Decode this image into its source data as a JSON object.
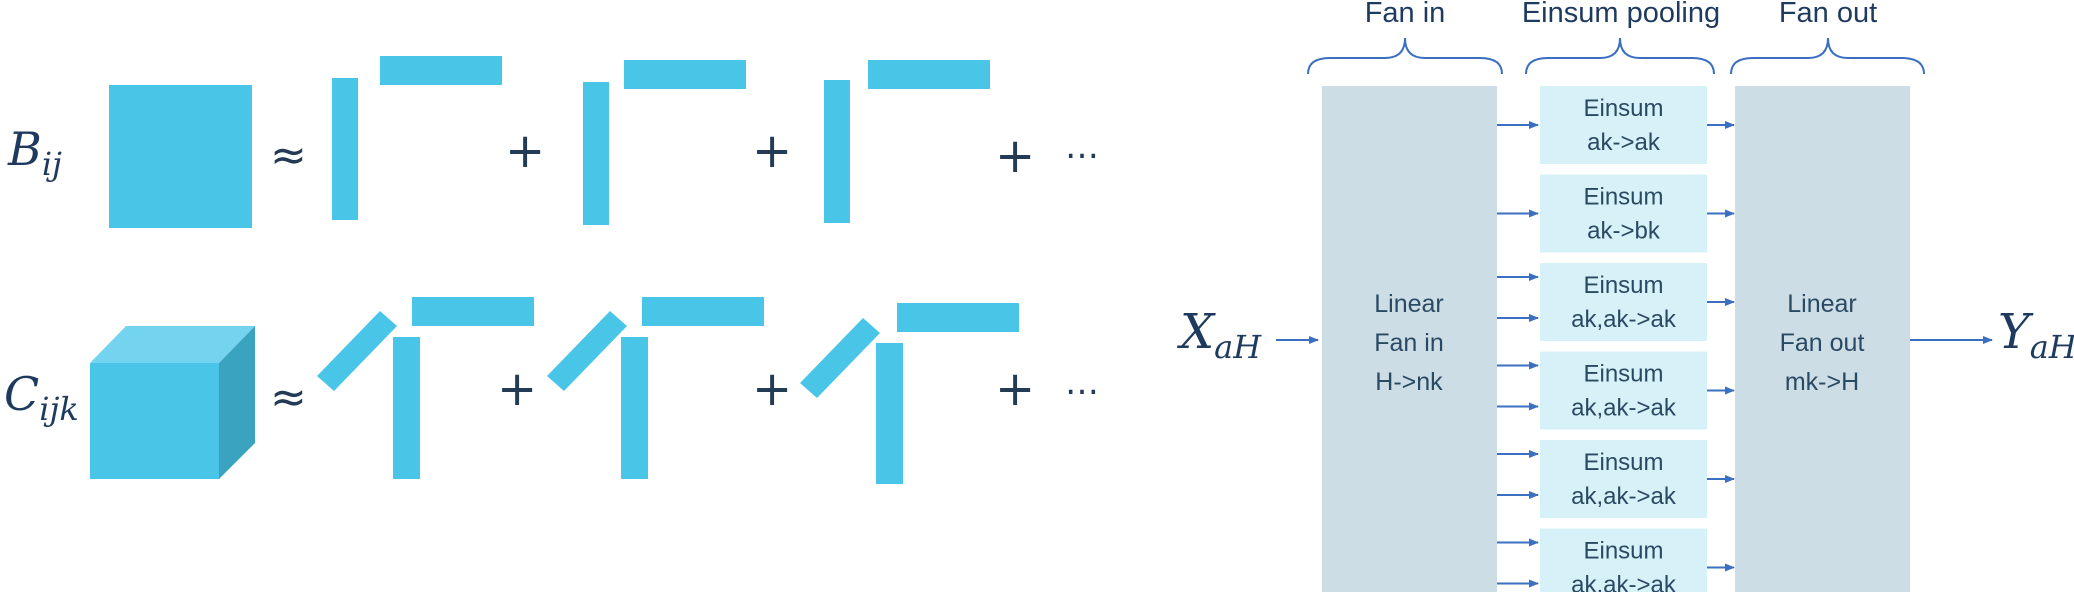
{
  "colors": {
    "tensor": "#49c5e8",
    "tensor_top": "#74d3ee",
    "tensor_side": "#3aa3c0",
    "panel": "#cddde6",
    "einsum_box": "#d7f1f8",
    "arrow": "#3b6fc0",
    "brace": "#3b6fc0",
    "text": "#1f3a5f"
  },
  "left": {
    "matrix_label_main": "B",
    "matrix_label_sub": "ij",
    "tensor_label_main": "C",
    "tensor_label_sub": "ijk",
    "approx": "≈",
    "plus": "+",
    "ellipsis": "…"
  },
  "right": {
    "input_main": "X",
    "input_sub": "aH",
    "output_main": "Y",
    "output_sub": "aH",
    "headers": {
      "fan_in": "Fan in",
      "einsum_pooling": "Einsum pooling",
      "fan_out": "Fan out"
    },
    "fan_in_panel": [
      "Linear",
      "Fan in",
      "H->nk"
    ],
    "fan_out_panel": [
      "Linear",
      "Fan out",
      "mk->H"
    ],
    "einsum_boxes": [
      {
        "title": "Einsum",
        "expr": "ak->ak",
        "inputs": 1
      },
      {
        "title": "Einsum",
        "expr": "ak->bk",
        "inputs": 1
      },
      {
        "title": "Einsum",
        "expr": "ak,ak->ak",
        "inputs": 2
      },
      {
        "title": "Einsum",
        "expr": "ak,ak->ak",
        "inputs": 2
      },
      {
        "title": "Einsum",
        "expr": "ak,ak->ak",
        "inputs": 2
      },
      {
        "title": "Einsum",
        "expr": "ak,ak->ak",
        "inputs": 2
      }
    ]
  }
}
